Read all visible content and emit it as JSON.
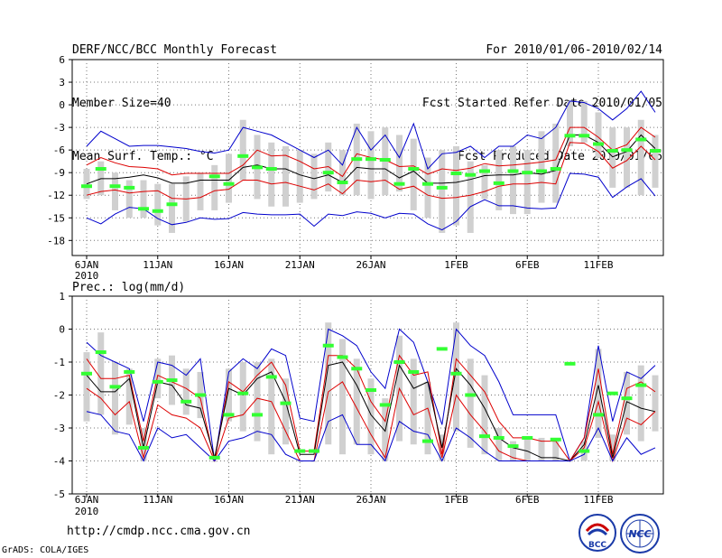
{
  "header": {
    "title": "DERF/NCC/BCC Monthly Forecast",
    "member_size": "Member Size=40",
    "variable": "Mean Surf. Temp.: °C",
    "period": "For 2010/01/06-2010/02/14",
    "started": "Fcst Started Refer Date 2010/01/05",
    "produced": "Fcst Produced Date 2010/01/06"
  },
  "precip_label": "Prec.: log(mm/d)",
  "footer": {
    "url": "http://cmdp.ncc.cma.gov.cn",
    "credit": "GrADS: COLA/IGES"
  },
  "logos": {
    "bcc": "BCC",
    "ncc": "NCC"
  },
  "colors": {
    "envelope": "#0000cc",
    "spread": "#dd0000",
    "mean": "#000000",
    "observed": "#33ff33",
    "box": "#d0d0d0"
  },
  "chart_data": [
    {
      "type": "line",
      "title": "Mean Surf. Temp.: °C",
      "x_labels": [
        {
          "day": 0,
          "label": "6JAN",
          "sub": "2010"
        },
        {
          "day": 5,
          "label": "11JAN"
        },
        {
          "day": 10,
          "label": "16JAN"
        },
        {
          "day": 15,
          "label": "21JAN"
        },
        {
          "day": 20,
          "label": "26JAN"
        },
        {
          "day": 26,
          "label": "1FEB"
        },
        {
          "day": 31,
          "label": "6FEB"
        },
        {
          "day": 36,
          "label": "11FEB"
        }
      ],
      "ylim": [
        -20,
        6
      ],
      "yticks": [
        6,
        3,
        0,
        -3,
        -6,
        -9,
        -12,
        -15,
        -18
      ],
      "days": 40,
      "series": [
        {
          "name": "max",
          "values": [
            -5.5,
            -3.5,
            -4.5,
            -5.5,
            -5.4,
            -5.4,
            -5.6,
            -5.8,
            -6.2,
            -6.4,
            -6,
            -3,
            -3.5,
            -4,
            -5,
            -6,
            -7,
            -6,
            -8,
            -3,
            -6,
            -4,
            -7,
            -2.5,
            -8.5,
            -6.5,
            -6.3,
            -5.5,
            -7,
            -5.5,
            -5.5,
            -4,
            -4.5,
            -3,
            0.5,
            0.3,
            -0.5,
            -2,
            -0.5,
            1.8,
            -1
          ]
        },
        {
          "name": "upper",
          "values": [
            -8,
            -7,
            -7.7,
            -8.2,
            -8.3,
            -8.5,
            -9.3,
            -9.1,
            -9.1,
            -9.1,
            -9.1,
            -8,
            -6,
            -6.8,
            -6.7,
            -7.5,
            -8.5,
            -8.2,
            -9.5,
            -6.5,
            -7,
            -7.3,
            -8.2,
            -8.1,
            -9.2,
            -8.5,
            -8.7,
            -8.4,
            -7.8,
            -8.1,
            -8,
            -7.8,
            -7.6,
            -7.3,
            -3,
            -3,
            -4.3,
            -6,
            -5.3,
            -3,
            -4.3
          ]
        },
        {
          "name": "mean",
          "values": [
            -10.5,
            -9.8,
            -9.8,
            -9.6,
            -9.3,
            -9.7,
            -10.4,
            -10.4,
            -10,
            -10,
            -10,
            -8.3,
            -8,
            -8.5,
            -8.5,
            -9.3,
            -9.8,
            -9.3,
            -10.3,
            -8.3,
            -8.5,
            -8.5,
            -9.7,
            -8.8,
            -10.4,
            -10.4,
            -10.3,
            -9.9,
            -9.4,
            -9.3,
            -9.3,
            -9,
            -9.2,
            -8.7,
            -4,
            -4,
            -5,
            -6.9,
            -6.2,
            -4,
            -5.8
          ]
        },
        {
          "name": "lower",
          "values": [
            -12,
            -11.5,
            -11.3,
            -11.7,
            -11.5,
            -11.4,
            -12.4,
            -12.5,
            -12.3,
            -11.4,
            -11.2,
            -10,
            -10,
            -10.5,
            -10.3,
            -10.8,
            -11.3,
            -10.5,
            -11.8,
            -10,
            -10.2,
            -10,
            -11.2,
            -10.8,
            -12,
            -12.4,
            -12.3,
            -12,
            -11.5,
            -10.8,
            -10.5,
            -10.5,
            -10.3,
            -10.5,
            -5,
            -5.1,
            -6.2,
            -8.4,
            -7.4,
            -5.5,
            -7.3
          ]
        },
        {
          "name": "min",
          "values": [
            -15,
            -15.8,
            -14.5,
            -13.6,
            -13.8,
            -15.1,
            -15.9,
            -15.6,
            -15,
            -15.2,
            -15.1,
            -14.3,
            -14.5,
            -14.6,
            -14.6,
            -14.5,
            -16.1,
            -14.5,
            -14.7,
            -14.2,
            -14.4,
            -15,
            -14.4,
            -14.5,
            -15.8,
            -16.6,
            -15.5,
            -13.5,
            -12.6,
            -13.4,
            -13.4,
            -13.7,
            -13.8,
            -13.7,
            -9.1,
            -9.2,
            -9.6,
            -12.3,
            -10.9,
            -9.8,
            -12.1
          ]
        }
      ],
      "boxes": [
        [
          -8.5,
          -12.5
        ],
        [
          -7.5,
          -12
        ],
        [
          -9,
          -14
        ],
        [
          -10,
          -15
        ],
        [
          -10,
          -15
        ],
        [
          -10.5,
          -16
        ],
        [
          -10.5,
          -17
        ],
        [
          -9.5,
          -15.5
        ],
        [
          -9,
          -14
        ],
        [
          -8,
          -14
        ],
        [
          -6.5,
          -13
        ],
        [
          -2,
          -10
        ],
        [
          -4,
          -12.5
        ],
        [
          -5,
          -13.5
        ],
        [
          -5.5,
          -13.5
        ],
        [
          -6,
          -13
        ],
        [
          -6.5,
          -12.5
        ],
        [
          -5,
          -11.5
        ],
        [
          -6,
          -12
        ],
        [
          -2.5,
          -12
        ],
        [
          -3.5,
          -12.5
        ],
        [
          -3,
          -12
        ],
        [
          -4,
          -11.5
        ],
        [
          -4.5,
          -14
        ],
        [
          -7,
          -15
        ],
        [
          -6,
          -17
        ],
        [
          -5.5,
          -16
        ],
        [
          -7.5,
          -17
        ],
        [
          -8,
          -12.5
        ],
        [
          -6,
          -14
        ],
        [
          -5.5,
          -14.5
        ],
        [
          -6,
          -14.5
        ],
        [
          -3.5,
          -13
        ],
        [
          -2.5,
          -13
        ],
        [
          0.5,
          -5.5
        ],
        [
          0.5,
          -5
        ],
        [
          -1,
          -7
        ],
        [
          -3,
          -11
        ],
        [
          -3,
          -11
        ],
        [
          -2,
          -12
        ],
        [
          -4,
          -11
        ]
      ],
      "observed": [
        {
          "day": 0,
          "value": -10.8
        },
        {
          "day": 1,
          "value": -8.5
        },
        {
          "day": 2,
          "value": -10.8
        },
        {
          "day": 3,
          "value": -11
        },
        {
          "day": 4,
          "value": -13.8
        },
        {
          "day": 5,
          "value": -14.1
        },
        {
          "day": 6,
          "value": -13.2
        },
        {
          "day": 9,
          "value": -9.5
        },
        {
          "day": 10,
          "value": -10.5
        },
        {
          "day": 11,
          "value": -6.8
        },
        {
          "day": 12,
          "value": -8.3
        },
        {
          "day": 13,
          "value": -8.5
        },
        {
          "day": 17,
          "value": -9
        },
        {
          "day": 18,
          "value": -10.3
        },
        {
          "day": 19,
          "value": -7.2
        },
        {
          "day": 20,
          "value": -7.2
        },
        {
          "day": 21,
          "value": -7.3
        },
        {
          "day": 22,
          "value": -10.5
        },
        {
          "day": 23,
          "value": -8.5
        },
        {
          "day": 24,
          "value": -10.5
        },
        {
          "day": 25,
          "value": -11
        },
        {
          "day": 26,
          "value": -9.1
        },
        {
          "day": 27,
          "value": -9.3
        },
        {
          "day": 28,
          "value": -8.8
        },
        {
          "day": 29,
          "value": -10.4
        },
        {
          "day": 30,
          "value": -8.8
        },
        {
          "day": 31,
          "value": -9
        },
        {
          "day": 32,
          "value": -8.8
        },
        {
          "day": 33,
          "value": -8.5
        },
        {
          "day": 34,
          "value": -4.1
        },
        {
          "day": 35,
          "value": -4.1
        },
        {
          "day": 36,
          "value": -5.2
        },
        {
          "day": 37,
          "value": -6.1
        },
        {
          "day": 38,
          "value": -6
        },
        {
          "day": 39,
          "value": -4.6
        },
        {
          "day": 40,
          "value": -6.1
        }
      ]
    },
    {
      "type": "line",
      "title": "Prec.: log(mm/d)",
      "x_labels": [
        {
          "day": 0,
          "label": "6JAN",
          "sub": "2010"
        },
        {
          "day": 5,
          "label": "11JAN"
        },
        {
          "day": 10,
          "label": "16JAN"
        },
        {
          "day": 15,
          "label": "21JAN"
        },
        {
          "day": 20,
          "label": "26JAN"
        },
        {
          "day": 26,
          "label": "1FEB"
        },
        {
          "day": 31,
          "label": "6FEB"
        },
        {
          "day": 36,
          "label": "11FEB"
        }
      ],
      "ylim": [
        -5,
        1
      ],
      "yticks": [
        1,
        0,
        -1,
        -2,
        -3,
        -4,
        -5
      ],
      "days": 40,
      "series": [
        {
          "name": "max",
          "values": [
            -0.4,
            -0.8,
            -1.0,
            -1.2,
            -2.8,
            -1.0,
            -1.1,
            -1.4,
            -0.9,
            -4,
            -1.3,
            -0.9,
            -1.2,
            -0.6,
            -0.8,
            -2.7,
            -2.8,
            0,
            -0.2,
            -0.5,
            -1.3,
            -1.8,
            0,
            -0.4,
            -1.6,
            -2.9,
            0,
            -0.5,
            -0.8,
            -1.6,
            -2.6,
            -2.6,
            -2.6,
            -2.6,
            -4,
            -3.3,
            -0.5,
            -2.8,
            -1.3,
            -1.5,
            -1.1
          ]
        },
        {
          "name": "upper",
          "values": [
            -0.9,
            -1.5,
            -1.5,
            -1.4,
            -3.4,
            -1.4,
            -1.6,
            -1.8,
            -2.1,
            -4,
            -1.6,
            -1.9,
            -1.4,
            -1.0,
            -1.7,
            -3.7,
            -3.7,
            -0.8,
            -0.8,
            -1.2,
            -2.2,
            -2.8,
            -0.8,
            -1.4,
            -1.3,
            -3.8,
            -0.9,
            -1.4,
            -1.9,
            -2.8,
            -3.3,
            -3.3,
            -3.4,
            -3.4,
            -4,
            -3.3,
            -1.2,
            -3.8,
            -1.8,
            -1.6,
            -1.9
          ]
        },
        {
          "name": "mean",
          "values": [
            -1.4,
            -1.9,
            -1.9,
            -1.5,
            -3.6,
            -1.6,
            -1.7,
            -2.3,
            -2.4,
            -3.9,
            -1.8,
            -2.0,
            -1.5,
            -1.3,
            -2.2,
            -3.8,
            -3.8,
            -1.1,
            -1.0,
            -1.7,
            -2.6,
            -3.1,
            -1.1,
            -1.8,
            -1.6,
            -3.6,
            -1.2,
            -1.7,
            -2.4,
            -3.3,
            -3.6,
            -3.7,
            -3.9,
            -3.9,
            -4,
            -3.5,
            -1.7,
            -3.9,
            -2.2,
            -2.4,
            -2.5
          ]
        },
        {
          "name": "lower",
          "values": [
            -1.8,
            -2.1,
            -2.6,
            -2.2,
            -3.9,
            -2.3,
            -2.6,
            -2.7,
            -3.0,
            -4,
            -2.7,
            -2.6,
            -2.1,
            -2.2,
            -3.1,
            -4,
            -4,
            -1.9,
            -1.6,
            -2.4,
            -3.2,
            -3.9,
            -1.8,
            -2.6,
            -2.4,
            -3.9,
            -2.0,
            -2.6,
            -3.1,
            -3.7,
            -3.9,
            -4,
            -4,
            -4,
            -4,
            -3.6,
            -2.2,
            -4,
            -2.7,
            -2.9,
            -2.5
          ]
        },
        {
          "name": "min",
          "values": [
            -2.5,
            -2.6,
            -3.1,
            -3.2,
            -4,
            -3.0,
            -3.3,
            -3.2,
            -3.6,
            -4,
            -3.4,
            -3.3,
            -3.1,
            -3.2,
            -3.8,
            -4,
            -4,
            -2.8,
            -2.6,
            -3.5,
            -3.5,
            -4,
            -2.8,
            -3.1,
            -3.2,
            -4,
            -3.0,
            -3.3,
            -3.7,
            -4,
            -4,
            -4,
            -4,
            -4,
            -4,
            -3.8,
            -3.0,
            -4,
            -3.3,
            -3.8,
            -3.6
          ]
        }
      ],
      "boxes": [
        [
          -0.7,
          -2.8
        ],
        [
          -0.1,
          -2.6
        ],
        [
          -1.0,
          -3.2
        ],
        [
          -1.2,
          -2.9
        ],
        [
          -3.0,
          -4.0
        ],
        [
          -0.9,
          -2.1
        ],
        [
          -0.8,
          -2.3
        ],
        [
          -1.2,
          -2.6
        ],
        [
          -1.3,
          -2.7
        ],
        [
          -4,
          -4
        ],
        [
          -1.2,
          -2.8
        ],
        [
          -1.0,
          -3.1
        ],
        [
          -1.0,
          -3.4
        ],
        [
          -0.9,
          -3.8
        ],
        [
          -1.5,
          -3.5
        ],
        [
          -4,
          -4
        ],
        [
          -4,
          -4
        ],
        [
          0.2,
          -3.5
        ],
        [
          -0.3,
          -3.8
        ],
        [
          -0.9,
          -3.5
        ],
        [
          -1.5,
          -3.8
        ],
        [
          -2.1,
          -4
        ],
        [
          -0.2,
          -3.4
        ],
        [
          -0.9,
          -3.5
        ],
        [
          -1.6,
          -3.8
        ],
        [
          -3.2,
          -4
        ],
        [
          0.2,
          -3.1
        ],
        [
          -0.9,
          -3.6
        ],
        [
          -1.4,
          -3.8
        ],
        [
          -3.0,
          -4
        ],
        [
          -3.4,
          -4
        ],
        [
          -3.3,
          -4
        ],
        [
          -3.3,
          -4
        ],
        [
          -3.3,
          -4
        ],
        [
          -4,
          -4
        ],
        [
          -3.4,
          -4
        ],
        [
          -0.6,
          -3.3
        ],
        [
          -3.2,
          -4
        ],
        [
          -1.3,
          -3.2
        ],
        [
          -1.1,
          -3.4
        ],
        [
          -1.4,
          -3.1
        ]
      ],
      "observed": [
        {
          "day": 0,
          "value": -1.35
        },
        {
          "day": 1,
          "value": -0.7
        },
        {
          "day": 2,
          "value": -1.75
        },
        {
          "day": 3,
          "value": -1.3
        },
        {
          "day": 4,
          "value": -3.6
        },
        {
          "day": 5,
          "value": -1.6
        },
        {
          "day": 6,
          "value": -1.55
        },
        {
          "day": 7,
          "value": -2.2
        },
        {
          "day": 8,
          "value": -2.0
        },
        {
          "day": 9,
          "value": -3.9
        },
        {
          "day": 10,
          "value": -2.6
        },
        {
          "day": 11,
          "value": -1.95
        },
        {
          "day": 12,
          "value": -2.6
        },
        {
          "day": 13,
          "value": -1.45
        },
        {
          "day": 14,
          "value": -2.25
        },
        {
          "day": 15,
          "value": -3.7
        },
        {
          "day": 16,
          "value": -3.7
        },
        {
          "day": 17,
          "value": -0.5
        },
        {
          "day": 18,
          "value": -0.85
        },
        {
          "day": 19,
          "value": -1.2
        },
        {
          "day": 20,
          "value": -1.85
        },
        {
          "day": 21,
          "value": -2.3
        },
        {
          "day": 22,
          "value": -1.0
        },
        {
          "day": 23,
          "value": -1.3
        },
        {
          "day": 24,
          "value": -3.4
        },
        {
          "day": 25,
          "value": -0.6
        },
        {
          "day": 26,
          "value": -1.35
        },
        {
          "day": 27,
          "value": -2.0
        },
        {
          "day": 28,
          "value": -3.25
        },
        {
          "day": 29,
          "value": -3.3
        },
        {
          "day": 30,
          "value": -3.55
        },
        {
          "day": 31,
          "value": -3.3
        },
        {
          "day": 33,
          "value": -3.35
        },
        {
          "day": 34,
          "value": -1.05
        },
        {
          "day": 35,
          "value": -3.7
        },
        {
          "day": 36,
          "value": -2.6
        },
        {
          "day": 37,
          "value": -1.95
        },
        {
          "day": 38,
          "value": -2.1
        },
        {
          "day": 39,
          "value": -1.7
        }
      ]
    }
  ]
}
